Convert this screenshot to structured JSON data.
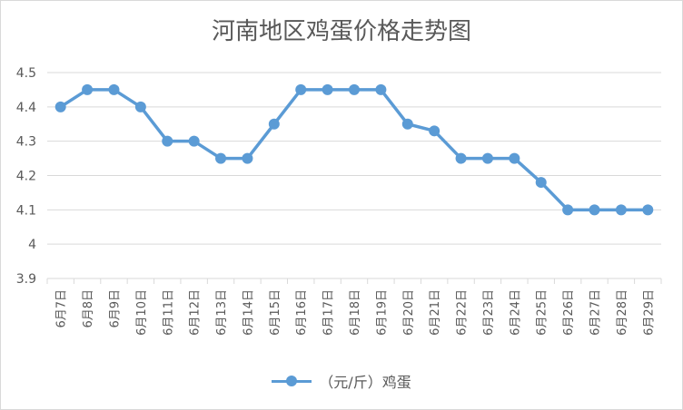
{
  "chart_data": {
    "type": "line",
    "title": "河南地区鸡蛋价格走势图",
    "categories": [
      "6月7日",
      "6月8日",
      "6月9日",
      "6月10日",
      "6月11日",
      "6月12日",
      "6月13日",
      "6月14日",
      "6月15日",
      "6月16日",
      "6月17日",
      "6月18日",
      "6月19日",
      "6月20日",
      "6月21日",
      "6月22日",
      "6月23日",
      "6月24日",
      "6月25日",
      "6月26日",
      "6月27日",
      "6月28日",
      "6月29日"
    ],
    "series": [
      {
        "name": "（元/斤）鸡蛋",
        "values": [
          4.4,
          4.45,
          4.45,
          4.4,
          4.3,
          4.3,
          4.25,
          4.25,
          4.35,
          4.45,
          4.45,
          4.45,
          4.45,
          4.35,
          4.33,
          4.25,
          4.25,
          4.25,
          4.18,
          4.1,
          4.1,
          4.1,
          4.1
        ],
        "color": "#5b9bd5"
      }
    ],
    "y_ticks": [
      "3.9",
      "4",
      "4.1",
      "4.2",
      "4.3",
      "4.4",
      "4.5"
    ],
    "ylim": [
      3.9,
      4.5
    ],
    "xlabel": "",
    "ylabel": "",
    "grid": true,
    "legend_position": "bottom"
  }
}
